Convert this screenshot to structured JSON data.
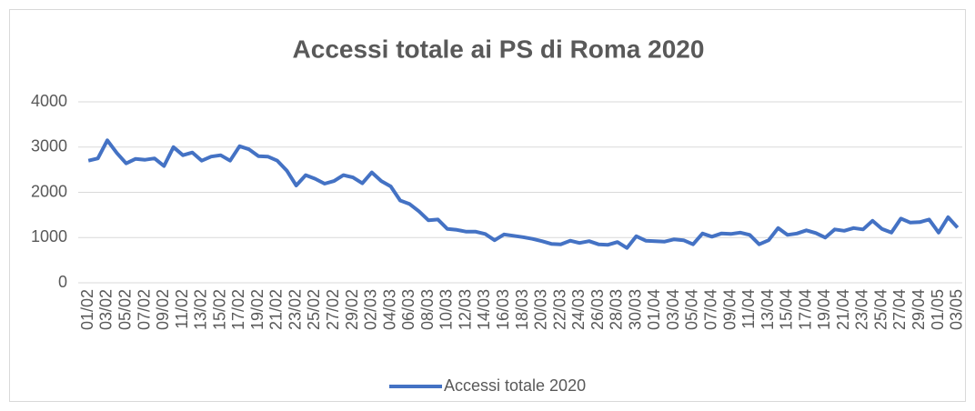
{
  "chart_data": {
    "type": "line",
    "title": "Accessi totale  ai PS di Roma 2020",
    "categories": [
      "01/02",
      null,
      "03/02",
      null,
      "05/02",
      null,
      "07/02",
      null,
      "09/02",
      null,
      "11/02",
      null,
      "13/02",
      null,
      "15/02",
      null,
      "17/02",
      null,
      "19/02",
      null,
      "21/02",
      null,
      "23/02",
      null,
      "25/02",
      null,
      "27/02",
      null,
      "29/02",
      null,
      "02/03",
      null,
      "04/03",
      null,
      "06/03",
      null,
      "08/03",
      null,
      "10/03",
      null,
      "12/03",
      null,
      "14/03",
      null,
      "16/03",
      null,
      "18/03",
      null,
      "20/03",
      null,
      "22/03",
      null,
      "24/03",
      null,
      "26/03",
      null,
      "28/03",
      null,
      "30/03",
      null,
      "01/04",
      null,
      "03/04",
      null,
      "05/04",
      null,
      "07/04",
      null,
      "09/04",
      null,
      "11/04",
      null,
      "13/04",
      null,
      "15/04",
      null,
      "17/04",
      null,
      "19/04",
      null,
      "21/04",
      null,
      "23/04",
      null,
      "25/04",
      null,
      "27/04",
      null,
      "29/04",
      null,
      "01/05",
      null,
      "03/05"
    ],
    "series": [
      {
        "name": "Accessi totale 2020",
        "color": "#4472c4",
        "values": [
          2700,
          2750,
          3150,
          2870,
          2640,
          2740,
          2720,
          2750,
          2580,
          3000,
          2820,
          2880,
          2700,
          2790,
          2820,
          2700,
          3020,
          2950,
          2800,
          2790,
          2700,
          2480,
          2150,
          2380,
          2300,
          2190,
          2250,
          2380,
          2330,
          2200,
          2440,
          2250,
          2130,
          1820,
          1740,
          1580,
          1380,
          1400,
          1190,
          1170,
          1130,
          1130,
          1080,
          940,
          1070,
          1040,
          1010,
          970,
          920,
          860,
          850,
          930,
          880,
          920,
          850,
          840,
          900,
          770,
          1030,
          930,
          920,
          910,
          960,
          940,
          850,
          1090,
          1020,
          1090,
          1080,
          1110,
          1060,
          850,
          940,
          1210,
          1060,
          1090,
          1160,
          1100,
          1000,
          1180,
          1150,
          1210,
          1180,
          1370,
          1190,
          1110,
          1420,
          1330,
          1340,
          1400,
          1110,
          1450,
          1220
        ]
      }
    ],
    "ylim": [
      0,
      4000
    ],
    "yticks": [
      0,
      1000,
      2000,
      3000,
      4000
    ],
    "grid": true,
    "legend": "bottom"
  }
}
